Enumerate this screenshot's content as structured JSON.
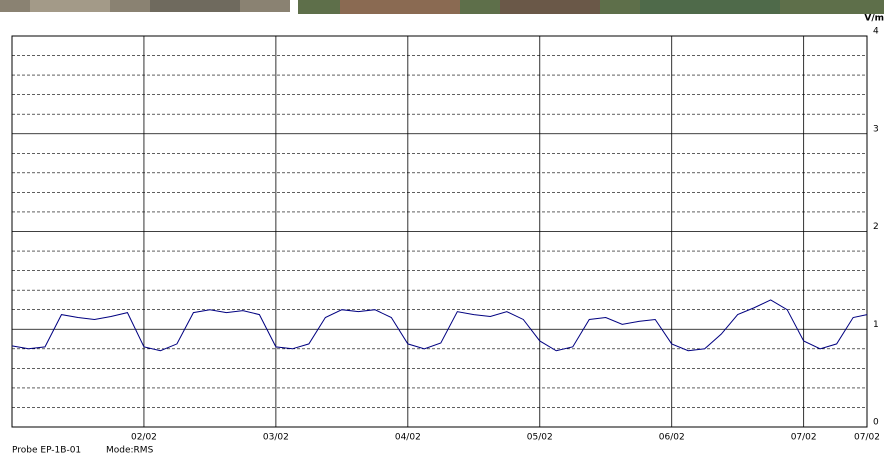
{
  "chart_data": {
    "type": "line",
    "ylabel": "V/m",
    "probe": "Probe EP-1B-01",
    "mode": "Mode:RMS",
    "x": [
      1,
      1.125,
      1.25,
      1.375,
      1.5,
      1.625,
      1.75,
      1.875,
      2,
      2.125,
      2.25,
      2.375,
      2.5,
      2.625,
      2.75,
      2.875,
      3,
      3.125,
      3.25,
      3.375,
      3.5,
      3.625,
      3.75,
      3.875,
      4,
      4.125,
      4.25,
      4.375,
      4.5,
      4.625,
      4.75,
      4.875,
      5,
      5.125,
      5.25,
      5.375,
      5.5,
      5.625,
      5.75,
      5.875,
      6,
      6.125,
      6.25,
      6.375,
      6.5,
      6.625,
      6.75,
      6.875,
      7,
      7.125,
      7.25,
      7.375,
      7.48
    ],
    "series": [
      {
        "color": "#000080",
        "values": [
          0.83,
          0.8,
          0.82,
          1.15,
          1.12,
          1.1,
          1.13,
          1.17,
          0.82,
          0.78,
          0.85,
          1.17,
          1.2,
          1.17,
          1.19,
          1.15,
          0.82,
          0.8,
          0.85,
          1.12,
          1.2,
          1.18,
          1.2,
          1.12,
          0.85,
          0.8,
          0.86,
          1.18,
          1.15,
          1.13,
          1.18,
          1.1,
          0.88,
          0.78,
          0.82,
          1.1,
          1.12,
          1.05,
          1.08,
          1.1,
          0.85,
          0.78,
          0.8,
          0.95,
          1.15,
          1.22,
          1.3,
          1.2,
          0.88,
          0.8,
          0.85,
          1.12,
          1.15
        ]
      }
    ],
    "xlim": [
      1,
      7.48
    ],
    "xticks": [
      {
        "value": 2,
        "label": "02/02"
      },
      {
        "value": 3,
        "label": "03/02"
      },
      {
        "value": 4,
        "label": "04/02"
      },
      {
        "value": 5,
        "label": "05/02"
      },
      {
        "value": 6,
        "label": "06/02"
      },
      {
        "value": 7,
        "label": "07/02"
      },
      {
        "value": 7.48,
        "label": "07/02"
      }
    ],
    "ylim": [
      0,
      4
    ],
    "yticks": [
      0,
      1,
      2,
      3,
      4
    ],
    "yminor": [
      0.2,
      0.4,
      0.6,
      0.8,
      1.2,
      1.4,
      1.6,
      1.8,
      2.2,
      2.4,
      2.6,
      2.8,
      3.2,
      3.4,
      3.6,
      3.8
    ],
    "grid": true
  }
}
